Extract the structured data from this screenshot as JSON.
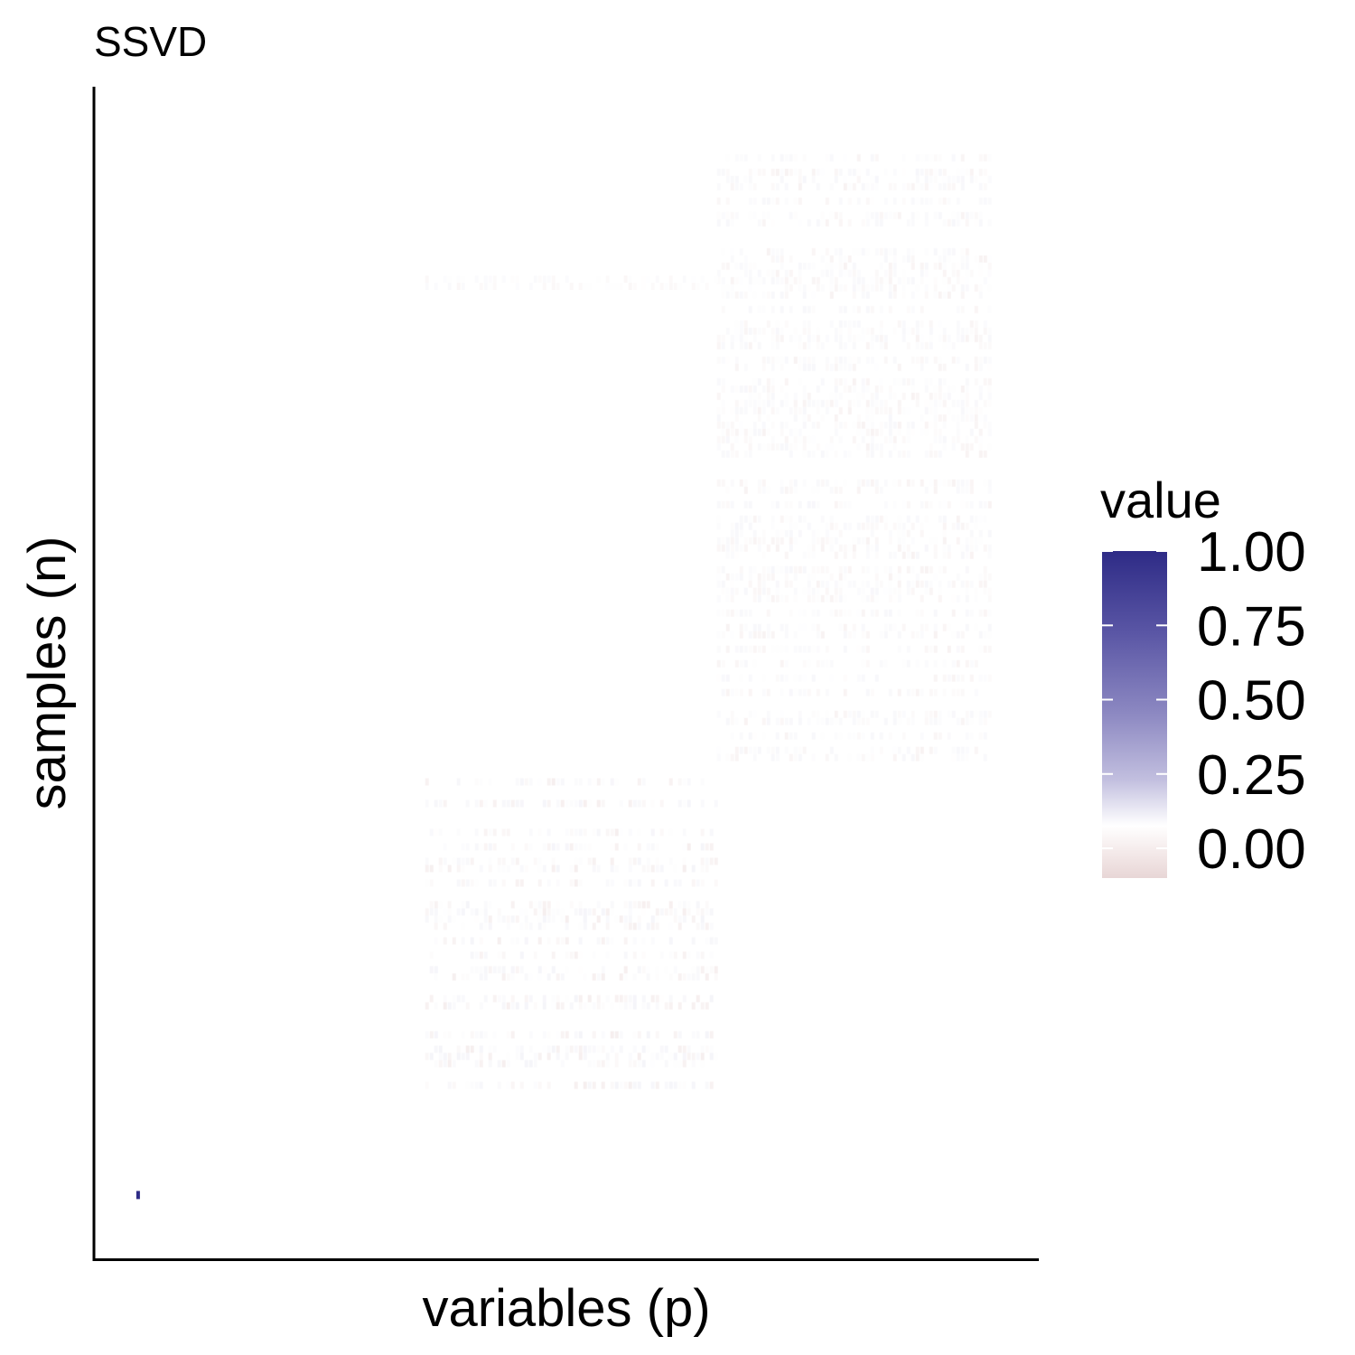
{
  "chart_data": {
    "type": "heatmap",
    "title": "SSVD",
    "xlabel": "variables (p)",
    "ylabel": "samples (n)",
    "colorbar": {
      "title": "value",
      "ticks": [
        1.0,
        0.75,
        0.5,
        0.25,
        0.0
      ],
      "tick_labels": [
        "1.00",
        "0.75",
        "0.50",
        "0.25",
        "0.00"
      ],
      "range": [
        -0.1,
        1.0
      ],
      "low_color": "#e8d6d6",
      "mid_color": "#ffffff",
      "high_color": "#2e2b86"
    },
    "axis_ranges": {
      "x": [
        0,
        100
      ],
      "y": [
        0,
        100
      ]
    },
    "grid": false,
    "legend_placement": "right",
    "blocks": [
      {
        "name": "block-upper-right",
        "x": [
          66,
          95
        ],
        "y": [
          43,
          95
        ],
        "value": 0.03
      },
      {
        "name": "block-lower-middle",
        "x": [
          35,
          66
        ],
        "y": [
          15,
          41
        ],
        "value": 0.04
      },
      {
        "name": "thin-row",
        "x": [
          35,
          66
        ],
        "y": [
          83,
          84
        ],
        "value": 0.02
      }
    ],
    "points": [
      {
        "x": 4.5,
        "y": 5.3,
        "value": 1.0
      }
    ]
  }
}
